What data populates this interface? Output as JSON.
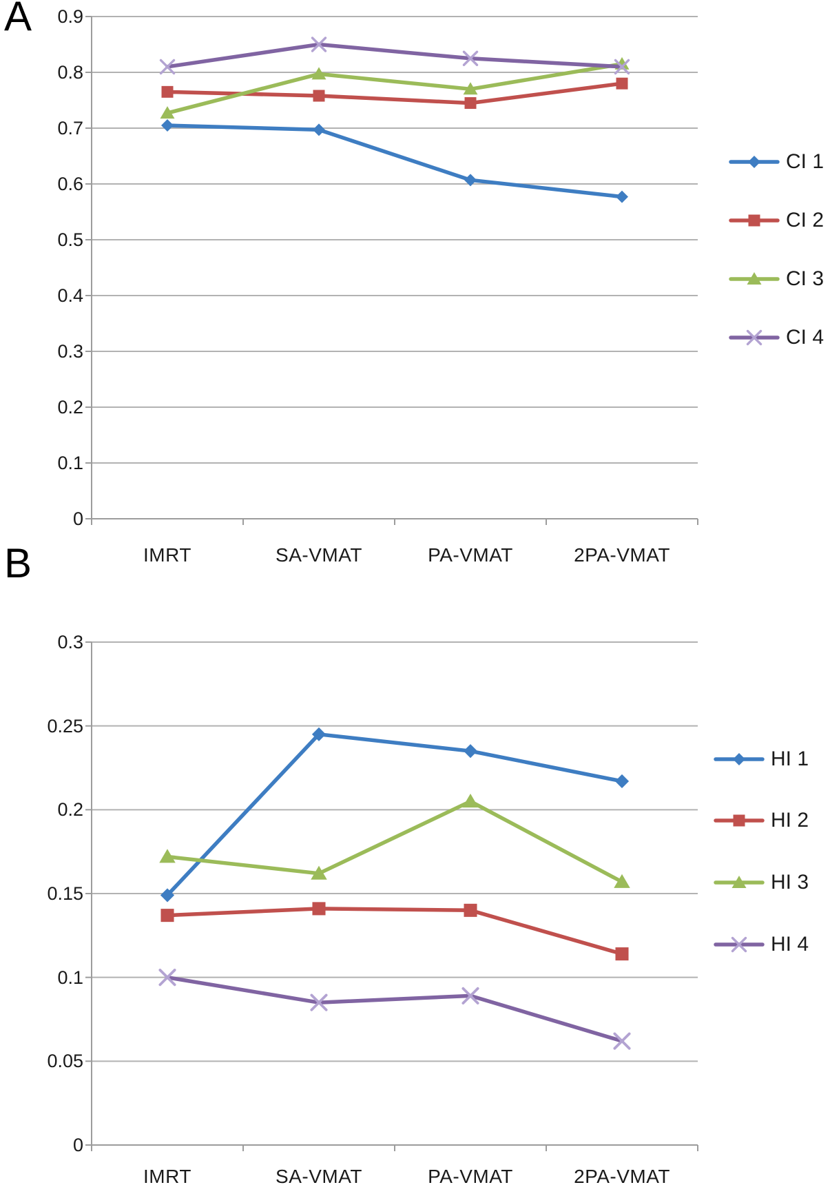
{
  "figure_background": "#ffffff",
  "style": {
    "grid_color": "#b2b2b2",
    "axis_color": "#9c9c9c",
    "text_color": "#1a1a1a",
    "x_marker_color": "#b3a3d2"
  },
  "chart_data": [
    {
      "type": "line",
      "panel_label": "A",
      "title": "",
      "xlabel": "",
      "ylabel": "",
      "grid": true,
      "legend_position": "right",
      "categories": [
        "IMRT",
        "SA-VMAT",
        "PA-VMAT",
        "2PA-VMAT"
      ],
      "ylim": [
        0,
        0.9
      ],
      "yticks": [
        0.9,
        0.8,
        0.7,
        0.6,
        0.5,
        0.4,
        0.3,
        0.2,
        0.1,
        0
      ],
      "ytick_labels": [
        "0.9",
        "0.8",
        "0.7",
        "0.6",
        "0.5",
        "0.4",
        "0.3",
        "0.2",
        "0.1",
        "0"
      ],
      "series": [
        {
          "name": "CI 1",
          "color": "#3e7dc2",
          "marker": "diamond",
          "values": [
            0.705,
            0.697,
            0.607,
            0.577
          ]
        },
        {
          "name": "CI 2",
          "color": "#c0504d",
          "marker": "square",
          "values": [
            0.765,
            0.758,
            0.745,
            0.78
          ]
        },
        {
          "name": "CI 3",
          "color": "#9bbb59",
          "marker": "triangle",
          "values": [
            0.727,
            0.797,
            0.77,
            0.815
          ]
        },
        {
          "name": "CI 4",
          "color": "#8064a2",
          "marker": "x",
          "values": [
            0.81,
            0.85,
            0.825,
            0.81
          ]
        }
      ]
    },
    {
      "type": "line",
      "panel_label": "B",
      "title": "",
      "xlabel": "",
      "ylabel": "",
      "grid": true,
      "legend_position": "right",
      "categories": [
        "IMRT",
        "SA-VMAT",
        "PA-VMAT",
        "2PA-VMAT"
      ],
      "ylim": [
        0,
        0.3
      ],
      "yticks": [
        0.3,
        0.25,
        0.2,
        0.15,
        0.1,
        0.05,
        0
      ],
      "ytick_labels": [
        "0.3",
        "0.25",
        "0.2",
        "0.15",
        "0.1",
        "0.05",
        "0"
      ],
      "series": [
        {
          "name": "HI 1",
          "color": "#3e7dc2",
          "marker": "diamond",
          "values": [
            0.149,
            0.245,
            0.235,
            0.217
          ]
        },
        {
          "name": "HI 2",
          "color": "#c0504d",
          "marker": "square",
          "values": [
            0.137,
            0.141,
            0.14,
            0.114
          ]
        },
        {
          "name": "HI 3",
          "color": "#9bbb59",
          "marker": "triangle",
          "values": [
            0.172,
            0.162,
            0.205,
            0.157
          ]
        },
        {
          "name": "HI 4",
          "color": "#8064a2",
          "marker": "x",
          "values": [
            0.1,
            0.085,
            0.089,
            0.062
          ]
        }
      ]
    }
  ]
}
